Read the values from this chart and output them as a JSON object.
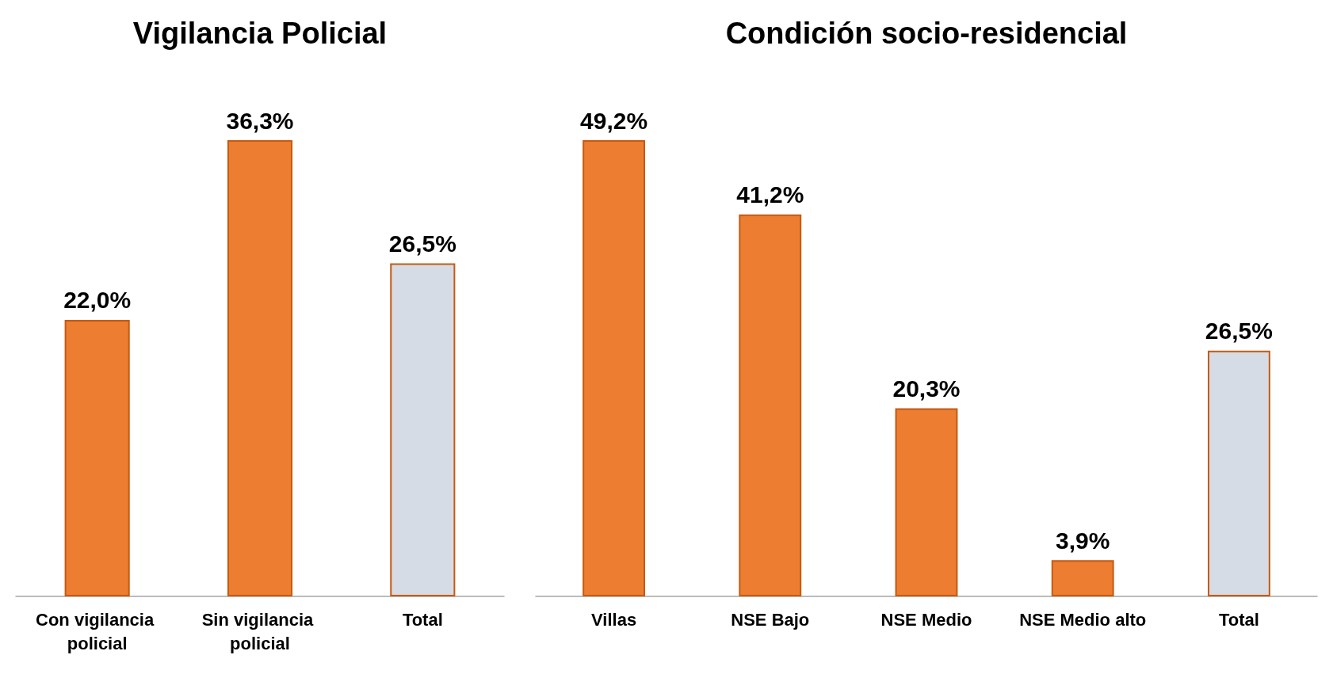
{
  "chart_data": [
    {
      "type": "bar",
      "title": "Vigilancia Policial",
      "categories": [
        "Con vigilancia policial",
        "Sin vigilancia policial",
        "Total"
      ],
      "values": [
        22.0,
        36.3,
        26.5
      ],
      "value_labels": [
        "22,0%",
        "36,3%",
        "26,5%"
      ],
      "colors": [
        "#ed7d31",
        "#ed7d31",
        "#d6dce5"
      ],
      "tick_labels": "x"
    },
    {
      "type": "bar",
      "title": "Condición socio-residencial",
      "categories": [
        "Villas",
        "NSE Bajo",
        "NSE Medio",
        "NSE Medio alto",
        "Total"
      ],
      "values": [
        49.2,
        41.2,
        20.3,
        3.9,
        26.5
      ],
      "value_labels": [
        "49,2%",
        "41,2%",
        "20,3%",
        "3,9%",
        "26,5%"
      ],
      "colors": [
        "#ed7d31",
        "#ed7d31",
        "#ed7d31",
        "#ed7d31",
        "#d6dce5"
      ],
      "tick_labels": "x"
    }
  ]
}
